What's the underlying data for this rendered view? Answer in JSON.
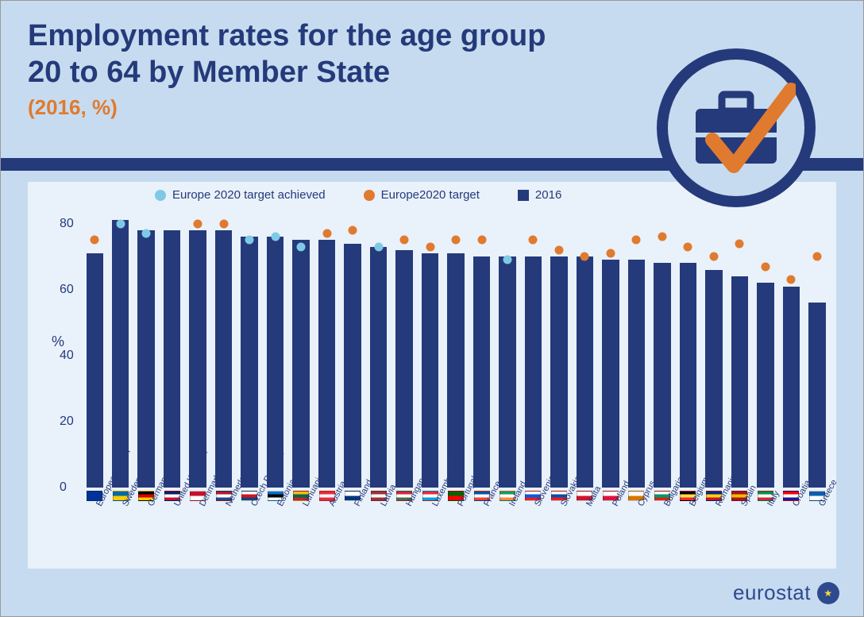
{
  "title_line1": "Employment rates for the age group",
  "title_line2": "20 to 64 by Member State",
  "subtitle": "(2016, %)",
  "legend": {
    "achieved": "Europe 2020 target achieved",
    "target": "Europe2020 target",
    "year": "2016"
  },
  "footer": {
    "brand": "eurostat"
  },
  "chart": {
    "type": "bar",
    "ylabel": "%",
    "ylim": [
      0,
      84
    ],
    "yticks": [
      0,
      20,
      40,
      60,
      80
    ],
    "tick_fontsize": 16,
    "label_fontsize": 11,
    "background_color": "#e9f1fa",
    "page_background": "#c6dbef",
    "bar_color": "#253a7a",
    "target_color": "#e07a2e",
    "achieved_color": "#7fc9e6",
    "bar_width": 0.66,
    "categories": [
      {
        "label": "European Union",
        "value": 71,
        "target": 75,
        "achieved": false,
        "flag": [
          "#003399"
        ]
      },
      {
        "label": "Sweden",
        "value": 81,
        "target": 80,
        "achieved": true,
        "flag": [
          "#006aa7",
          "#fecc00"
        ]
      },
      {
        "label": "Germany",
        "value": 78,
        "target": 77,
        "achieved": true,
        "flag": [
          "#000000",
          "#dd0000",
          "#ffce00"
        ]
      },
      {
        "label": "United Kingdom",
        "value": 78,
        "target": null,
        "achieved": false,
        "flag": [
          "#012169",
          "#ffffff",
          "#c8102e"
        ]
      },
      {
        "label": "Denmark",
        "value": 78,
        "target": 80,
        "achieved": false,
        "flag": [
          "#c8102e",
          "#ffffff"
        ]
      },
      {
        "label": "Netherlands",
        "value": 78,
        "target": 80,
        "achieved": false,
        "flag": [
          "#ae1c28",
          "#ffffff",
          "#21468b"
        ]
      },
      {
        "label": "Czech Republic",
        "value": 76,
        "target": 75,
        "achieved": true,
        "flag": [
          "#ffffff",
          "#d7141a",
          "#11457e"
        ]
      },
      {
        "label": "Estonia",
        "value": 76,
        "target": 76,
        "achieved": true,
        "flag": [
          "#0072ce",
          "#000000",
          "#ffffff"
        ]
      },
      {
        "label": "Lithuania",
        "value": 75,
        "target": 73,
        "achieved": true,
        "flag": [
          "#fdb913",
          "#006a44",
          "#c1272d"
        ]
      },
      {
        "label": "Austria",
        "value": 75,
        "target": 77,
        "achieved": false,
        "flag": [
          "#ed2939",
          "#ffffff",
          "#ed2939"
        ]
      },
      {
        "label": "Finland",
        "value": 74,
        "target": 78,
        "achieved": false,
        "flag": [
          "#ffffff",
          "#003580"
        ]
      },
      {
        "label": "Latvia",
        "value": 73,
        "target": 73,
        "achieved": true,
        "flag": [
          "#9e3039",
          "#ffffff",
          "#9e3039"
        ]
      },
      {
        "label": "Hungary",
        "value": 72,
        "target": 75,
        "achieved": false,
        "flag": [
          "#cd2a3e",
          "#ffffff",
          "#436f4d"
        ]
      },
      {
        "label": "Luxembourg",
        "value": 71,
        "target": 73,
        "achieved": false,
        "flag": [
          "#ed2939",
          "#ffffff",
          "#00a1de"
        ]
      },
      {
        "label": "Portugal",
        "value": 71,
        "target": 75,
        "achieved": false,
        "flag": [
          "#006600",
          "#ff0000"
        ]
      },
      {
        "label": "France",
        "value": 70,
        "target": 75,
        "achieved": false,
        "flag": [
          "#0055a4",
          "#ffffff",
          "#ef4135"
        ]
      },
      {
        "label": "Ireland",
        "value": 70,
        "target": 69,
        "achieved": true,
        "flag": [
          "#169b62",
          "#ffffff",
          "#ff883e"
        ]
      },
      {
        "label": "Slovenia",
        "value": 70,
        "target": 75,
        "achieved": false,
        "flag": [
          "#ffffff",
          "#005ce5",
          "#ed1c24"
        ]
      },
      {
        "label": "Slovakia",
        "value": 70,
        "target": 72,
        "achieved": false,
        "flag": [
          "#ffffff",
          "#0b4ea2",
          "#ee1c25"
        ]
      },
      {
        "label": "Malta",
        "value": 70,
        "target": 70,
        "achieved": false,
        "flag": [
          "#ffffff",
          "#cf142b"
        ]
      },
      {
        "label": "Poland",
        "value": 69,
        "target": 71,
        "achieved": false,
        "flag": [
          "#ffffff",
          "#dc143c"
        ]
      },
      {
        "label": "Cyprus",
        "value": 69,
        "target": 75,
        "achieved": false,
        "flag": [
          "#ffffff",
          "#d57800"
        ]
      },
      {
        "label": "Bulgaria",
        "value": 68,
        "target": 76,
        "achieved": false,
        "flag": [
          "#ffffff",
          "#00966e",
          "#d62612"
        ]
      },
      {
        "label": "Belgium",
        "value": 68,
        "target": 73,
        "achieved": false,
        "flag": [
          "#000000",
          "#fae042",
          "#ed2939"
        ]
      },
      {
        "label": "Romania",
        "value": 66,
        "target": 70,
        "achieved": false,
        "flag": [
          "#002b7f",
          "#fcd116",
          "#ce1126"
        ]
      },
      {
        "label": "Spain",
        "value": 64,
        "target": 74,
        "achieved": false,
        "flag": [
          "#aa151b",
          "#f1bf00",
          "#aa151b"
        ]
      },
      {
        "label": "Italy",
        "value": 62,
        "target": 67,
        "achieved": false,
        "flag": [
          "#009246",
          "#ffffff",
          "#ce2b37"
        ]
      },
      {
        "label": "Croatia",
        "value": 61,
        "target": 63,
        "achieved": false,
        "flag": [
          "#ff0000",
          "#ffffff",
          "#171796"
        ]
      },
      {
        "label": "Greece",
        "value": 56,
        "target": 70,
        "achieved": false,
        "flag": [
          "#0d5eaf",
          "#ffffff"
        ]
      }
    ]
  }
}
